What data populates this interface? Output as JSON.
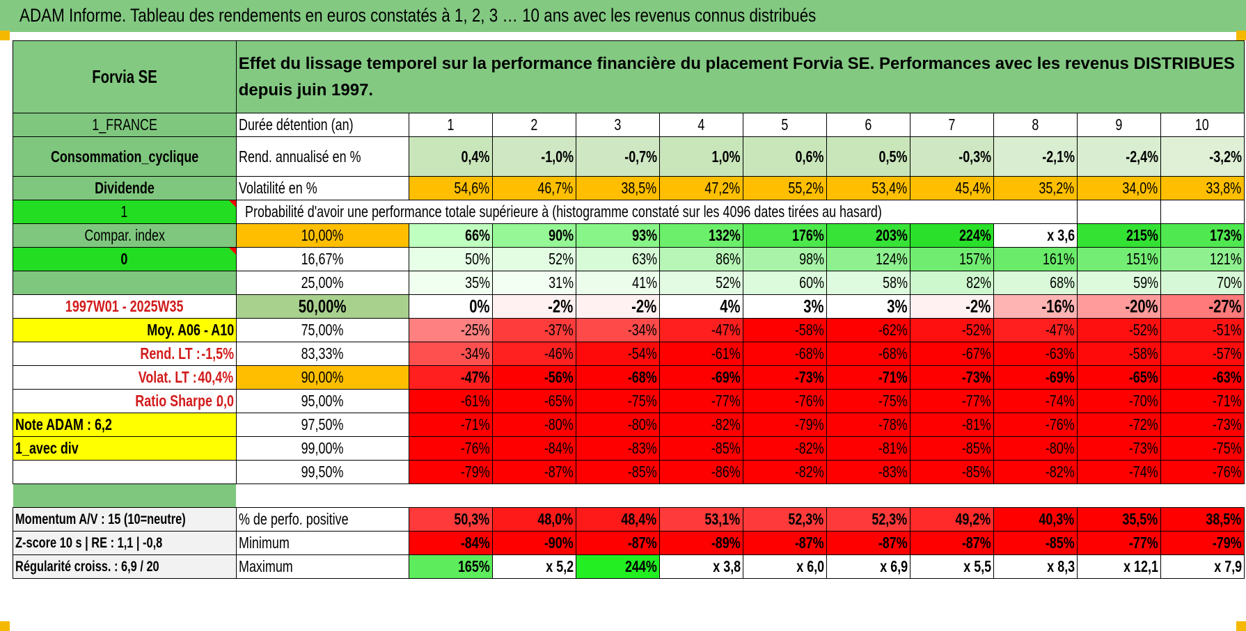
{
  "title": "ADAM Informe. Tableau des rendements en euros constatés à 1, 2, 3 … 10 ans avec les revenus connus distribués",
  "colors": {
    "header_green": "#83c982",
    "bright_green": "#22dd22",
    "red": "#ff0000",
    "orange": "#ffbf00",
    "yellow": "#ffff00"
  },
  "left": {
    "company": "Forvia SE",
    "country": "1_FRANCE",
    "sector": "Consommation_cyclique",
    "type": "Dividende",
    "flag1": "1",
    "compar": "Compar. index",
    "flag2": "0",
    "period": "1997W01 - 2025W35",
    "moy": "Moy. A06 - A10",
    "rend_lt_label": "Rend. LT :",
    "rend_lt_value": "-1,5%",
    "volat_lt_label": "Volat. LT :",
    "volat_lt_value": "40,4%",
    "sharpe_label": "Ratio Sharpe :",
    "sharpe_value": "0,0",
    "note": "Note ADAM : 6,2",
    "div": "1_avec div",
    "momentum": "Momentum A/V : 15 (10=neutre)",
    "zscore": "Z-score 10 s | RE : 1,1 | -0,8",
    "regularite": "Régularité croiss. : 6,9 / 20"
  },
  "header_text": "Effet du lissage temporel sur la performance financière du placement Forvia SE. Performances avec les revenus DISTRIBUES depuis juin 1997.",
  "labels": {
    "duree": "Durée détention (an)",
    "rend": "Rend. annualisé en %",
    "vol": "Volatilité en %",
    "prob": "Probabilité d'avoir une performance totale supérieure à (histogramme constaté sur les 4096 dates tirées au hasard)",
    "pos": "% de perfo. positive",
    "min": "Minimum",
    "max": "Maximum"
  },
  "years": [
    "1",
    "2",
    "3",
    "4",
    "5",
    "6",
    "7",
    "8",
    "9",
    "10"
  ],
  "rend": [
    "0,4%",
    "-1,0%",
    "-0,7%",
    "1,0%",
    "0,6%",
    "0,5%",
    "-0,3%",
    "-2,1%",
    "-2,4%",
    "-3,2%"
  ],
  "vol": [
    "54,6%",
    "46,7%",
    "38,5%",
    "47,2%",
    "55,2%",
    "53,4%",
    "45,4%",
    "35,2%",
    "34,0%",
    "33,8%"
  ],
  "hist": [
    {
      "pct": "10,00%",
      "values": [
        "66%",
        "90%",
        "93%",
        "132%",
        "176%",
        "203%",
        "224%",
        "x 3,6",
        "215%",
        "173%"
      ]
    },
    {
      "pct": "16,67%",
      "values": [
        "50%",
        "52%",
        "63%",
        "86%",
        "98%",
        "124%",
        "157%",
        "161%",
        "151%",
        "121%"
      ]
    },
    {
      "pct": "25,00%",
      "values": [
        "35%",
        "31%",
        "41%",
        "52%",
        "60%",
        "58%",
        "82%",
        "68%",
        "59%",
        "70%"
      ]
    },
    {
      "pct": "50,00%",
      "values": [
        "0%",
        "-2%",
        "-2%",
        "4%",
        "3%",
        "3%",
        "-2%",
        "-16%",
        "-20%",
        "-27%"
      ]
    },
    {
      "pct": "75,00%",
      "values": [
        "-25%",
        "-37%",
        "-34%",
        "-47%",
        "-58%",
        "-62%",
        "-52%",
        "-47%",
        "-52%",
        "-51%"
      ]
    },
    {
      "pct": "83,33%",
      "values": [
        "-34%",
        "-46%",
        "-54%",
        "-61%",
        "-68%",
        "-68%",
        "-67%",
        "-63%",
        "-58%",
        "-57%"
      ]
    },
    {
      "pct": "90,00%",
      "values": [
        "-47%",
        "-56%",
        "-68%",
        "-69%",
        "-73%",
        "-71%",
        "-73%",
        "-69%",
        "-65%",
        "-63%"
      ]
    },
    {
      "pct": "95,00%",
      "values": [
        "-61%",
        "-65%",
        "-75%",
        "-77%",
        "-76%",
        "-75%",
        "-77%",
        "-74%",
        "-70%",
        "-71%"
      ]
    },
    {
      "pct": "97,50%",
      "values": [
        "-71%",
        "-80%",
        "-80%",
        "-82%",
        "-79%",
        "-78%",
        "-81%",
        "-76%",
        "-72%",
        "-73%"
      ]
    },
    {
      "pct": "99,00%",
      "values": [
        "-76%",
        "-84%",
        "-83%",
        "-85%",
        "-82%",
        "-81%",
        "-85%",
        "-80%",
        "-73%",
        "-75%"
      ]
    },
    {
      "pct": "99,50%",
      "values": [
        "-79%",
        "-87%",
        "-85%",
        "-86%",
        "-82%",
        "-83%",
        "-85%",
        "-82%",
        "-74%",
        "-76%"
      ]
    }
  ],
  "pos": [
    "50,3%",
    "48,0%",
    "48,4%",
    "53,1%",
    "52,3%",
    "52,3%",
    "49,2%",
    "40,3%",
    "35,5%",
    "38,5%"
  ],
  "min": [
    "-84%",
    "-90%",
    "-87%",
    "-89%",
    "-87%",
    "-87%",
    "-87%",
    "-85%",
    "-77%",
    "-79%"
  ],
  "max": [
    "165%",
    "x 5,2",
    "244%",
    "x 3,8",
    "x 6,0",
    "x 6,9",
    "x 5,5",
    "x 8,3",
    "x 12,1",
    "x 7,9"
  ]
}
